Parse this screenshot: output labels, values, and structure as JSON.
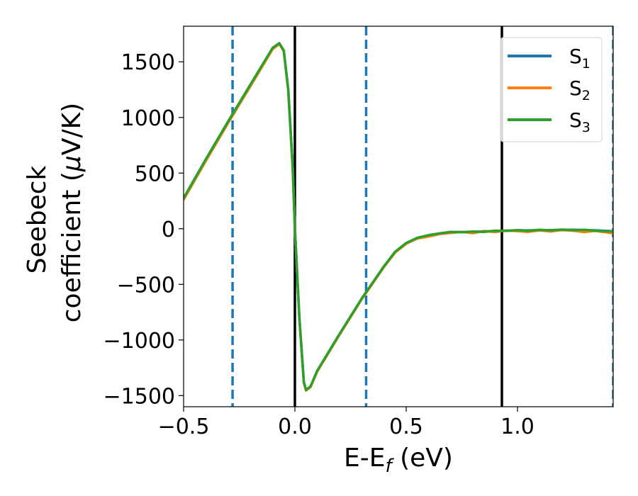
{
  "chart_data": {
    "type": "line",
    "xlabel": "E-E_f (eV)",
    "xlabel_main": "E-E",
    "xlabel_sub": "f",
    "xlabel_tail": " (eV)",
    "ylabel_line1": "Seebeck",
    "ylabel_line2_a": "coefficient  (",
    "ylabel_line2_mu": "μ",
    "ylabel_line2_b": "V/K)",
    "xlim": [
      -0.5,
      1.43
    ],
    "ylim": [
      -1600,
      1820
    ],
    "x_ticks": [
      -0.5,
      0.0,
      0.5,
      1.0
    ],
    "x_tick_labels": [
      "−0.5",
      "0.0",
      "0.5",
      "1.0"
    ],
    "y_ticks": [
      -1500,
      -1000,
      -500,
      0,
      500,
      1000,
      1500
    ],
    "y_tick_labels": [
      "−1500",
      "−1000",
      "−500",
      "0",
      "500",
      "1000",
      "1500"
    ],
    "vertical_lines": {
      "solid_black": [
        0.0,
        0.93
      ],
      "dashed_blue": [
        -0.28,
        0.32,
        1.43
      ]
    },
    "legend": {
      "position": "top-right",
      "entries": [
        {
          "name": "S",
          "sub": "1",
          "color": "#1f77b4"
        },
        {
          "name": "S",
          "sub": "2",
          "color": "#ff7f0e"
        },
        {
          "name": "S",
          "sub": "3",
          "color": "#2ca02c"
        }
      ]
    },
    "series": [
      {
        "name": "S1",
        "color": "#1f77b4",
        "x": [
          -0.5,
          -0.4,
          -0.3,
          -0.2,
          -0.1,
          -0.07,
          -0.05,
          -0.03,
          -0.01,
          0.0,
          0.02,
          0.04,
          0.05,
          0.07,
          0.1,
          0.2,
          0.3,
          0.4,
          0.45,
          0.5,
          0.55,
          0.6,
          0.65,
          0.7,
          0.75,
          0.8,
          0.85,
          0.9,
          0.95,
          1.0,
          1.05,
          1.1,
          1.15,
          1.2,
          1.25,
          1.3,
          1.35,
          1.43
        ],
        "values": [
          270,
          620,
          960,
          1290,
          1620,
          1665,
          1600,
          1250,
          550,
          0,
          -800,
          -1380,
          -1450,
          -1420,
          -1280,
          -950,
          -630,
          -340,
          -210,
          -130,
          -85,
          -60,
          -45,
          -30,
          -30,
          -28,
          -25,
          -20,
          -18,
          -15,
          -15,
          -12,
          -12,
          -10,
          -10,
          -12,
          -15,
          -22
        ]
      },
      {
        "name": "S2",
        "color": "#ff7f0e",
        "x": [
          -0.5,
          -0.4,
          -0.3,
          -0.2,
          -0.1,
          -0.07,
          -0.05,
          -0.03,
          -0.01,
          0.0,
          0.02,
          0.04,
          0.05,
          0.07,
          0.1,
          0.2,
          0.3,
          0.4,
          0.45,
          0.5,
          0.55,
          0.6,
          0.65,
          0.7,
          0.75,
          0.8,
          0.85,
          0.9,
          0.95,
          1.0,
          1.05,
          1.1,
          1.15,
          1.2,
          1.25,
          1.3,
          1.35,
          1.43
        ],
        "values": [
          260,
          610,
          950,
          1280,
          1615,
          1660,
          1595,
          1245,
          545,
          0,
          -805,
          -1385,
          -1455,
          -1425,
          -1285,
          -955,
          -635,
          -345,
          -215,
          -135,
          -88,
          -70,
          -48,
          -38,
          -28,
          -40,
          -20,
          -30,
          -15,
          -22,
          -28,
          -15,
          -25,
          -12,
          -18,
          -30,
          -20,
          -40
        ]
      },
      {
        "name": "S3",
        "color": "#2ca02c",
        "x": [
          -0.5,
          -0.4,
          -0.3,
          -0.2,
          -0.1,
          -0.07,
          -0.05,
          -0.03,
          -0.01,
          0.0,
          0.02,
          0.04,
          0.05,
          0.07,
          0.1,
          0.2,
          0.3,
          0.4,
          0.45,
          0.5,
          0.55,
          0.6,
          0.65,
          0.7,
          0.75,
          0.8,
          0.85,
          0.9,
          0.95,
          1.0,
          1.05,
          1.1,
          1.15,
          1.2,
          1.25,
          1.3,
          1.35,
          1.43
        ],
        "values": [
          275,
          625,
          965,
          1295,
          1625,
          1668,
          1602,
          1252,
          552,
          0,
          -798,
          -1378,
          -1448,
          -1418,
          -1278,
          -948,
          -628,
          -338,
          -208,
          -128,
          -82,
          -58,
          -42,
          -28,
          -32,
          -25,
          -28,
          -18,
          -20,
          -12,
          -18,
          -10,
          -15,
          -8,
          -12,
          -10,
          -18,
          -25
        ]
      }
    ]
  }
}
